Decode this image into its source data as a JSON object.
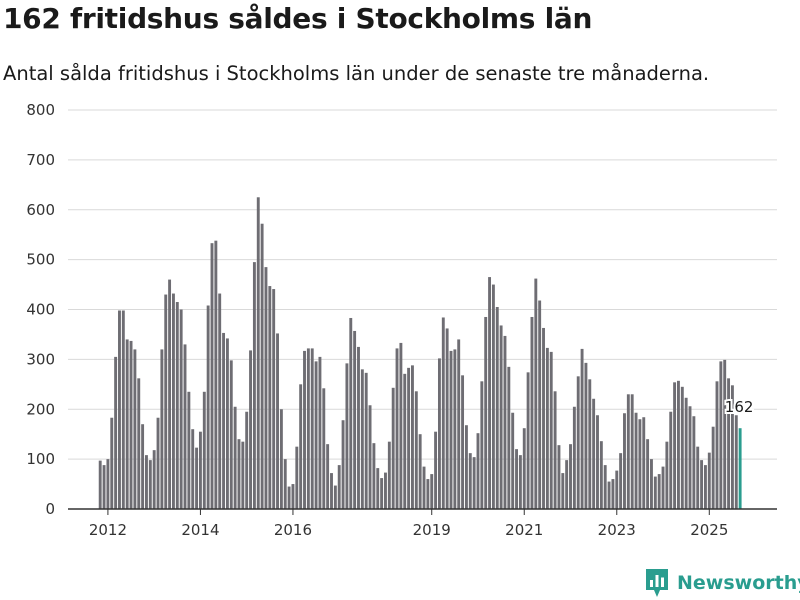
{
  "header": {
    "title": "162 fritidshus såldes i Stockholms län",
    "subtitle": "Antal sålda fritidshus i Stockholms län under de senaste tre månaderna."
  },
  "brand": {
    "name": "Newsworthy",
    "icon": "bar-chart-logo-icon"
  },
  "colors": {
    "bar": "#6e6d73",
    "highlight": "#2a9d8f",
    "grid": "#d9d9d9",
    "axis": "#333333"
  },
  "chart_data": {
    "type": "bar",
    "title": "162 fritidshus såldes i Stockholms län",
    "subtitle": "Antal sålda fritidshus i Stockholms län under de senaste tre månaderna.",
    "xlabel": "",
    "ylabel": "",
    "ylim": [
      0,
      800
    ],
    "yticks": [
      0,
      100,
      200,
      300,
      400,
      500,
      600,
      700,
      800
    ],
    "xticks": [
      {
        "label": "2012",
        "index": 2
      },
      {
        "label": "2014",
        "index": 26
      },
      {
        "label": "2016",
        "index": 50
      },
      {
        "label": "2019",
        "index": 86
      },
      {
        "label": "2021",
        "index": 110
      },
      {
        "label": "2023",
        "index": 134
      },
      {
        "label": "2025",
        "index": 158
      }
    ],
    "start": "2011-10",
    "grid": true,
    "highlight_last": true,
    "last_label": "162",
    "values": [
      97,
      88,
      100,
      183,
      305,
      398,
      398,
      340,
      337,
      320,
      262,
      170,
      108,
      98,
      118,
      183,
      320,
      430,
      460,
      432,
      415,
      400,
      330,
      235,
      160,
      123,
      155,
      235,
      408,
      533,
      538,
      432,
      353,
      342,
      298,
      205,
      140,
      135,
      195,
      318,
      495,
      625,
      572,
      485,
      447,
      441,
      352,
      200,
      100,
      45,
      50,
      125,
      250,
      317,
      322,
      322,
      296,
      305,
      242,
      130,
      72,
      47,
      88,
      178,
      292,
      383,
      357,
      325,
      280,
      273,
      208,
      132,
      82,
      62,
      73,
      135,
      243,
      322,
      333,
      271,
      283,
      288,
      236,
      150,
      85,
      60,
      70,
      155,
      302,
      384,
      362,
      317,
      320,
      340,
      268,
      168,
      112,
      104,
      152,
      256,
      385,
      465,
      450,
      405,
      368,
      347,
      285,
      193,
      120,
      108,
      162,
      274,
      385,
      462,
      418,
      363,
      323,
      315,
      236,
      128,
      72,
      98,
      130,
      205,
      266,
      321,
      293,
      260,
      221,
      188,
      136,
      88,
      55,
      60,
      77,
      112,
      192,
      230,
      230,
      193,
      180,
      184,
      140,
      100,
      65,
      70,
      85,
      135,
      195,
      254,
      257,
      245,
      223,
      206,
      186,
      125,
      98,
      88,
      113,
      165,
      256,
      296,
      299,
      262,
      248,
      188,
      162
    ]
  }
}
